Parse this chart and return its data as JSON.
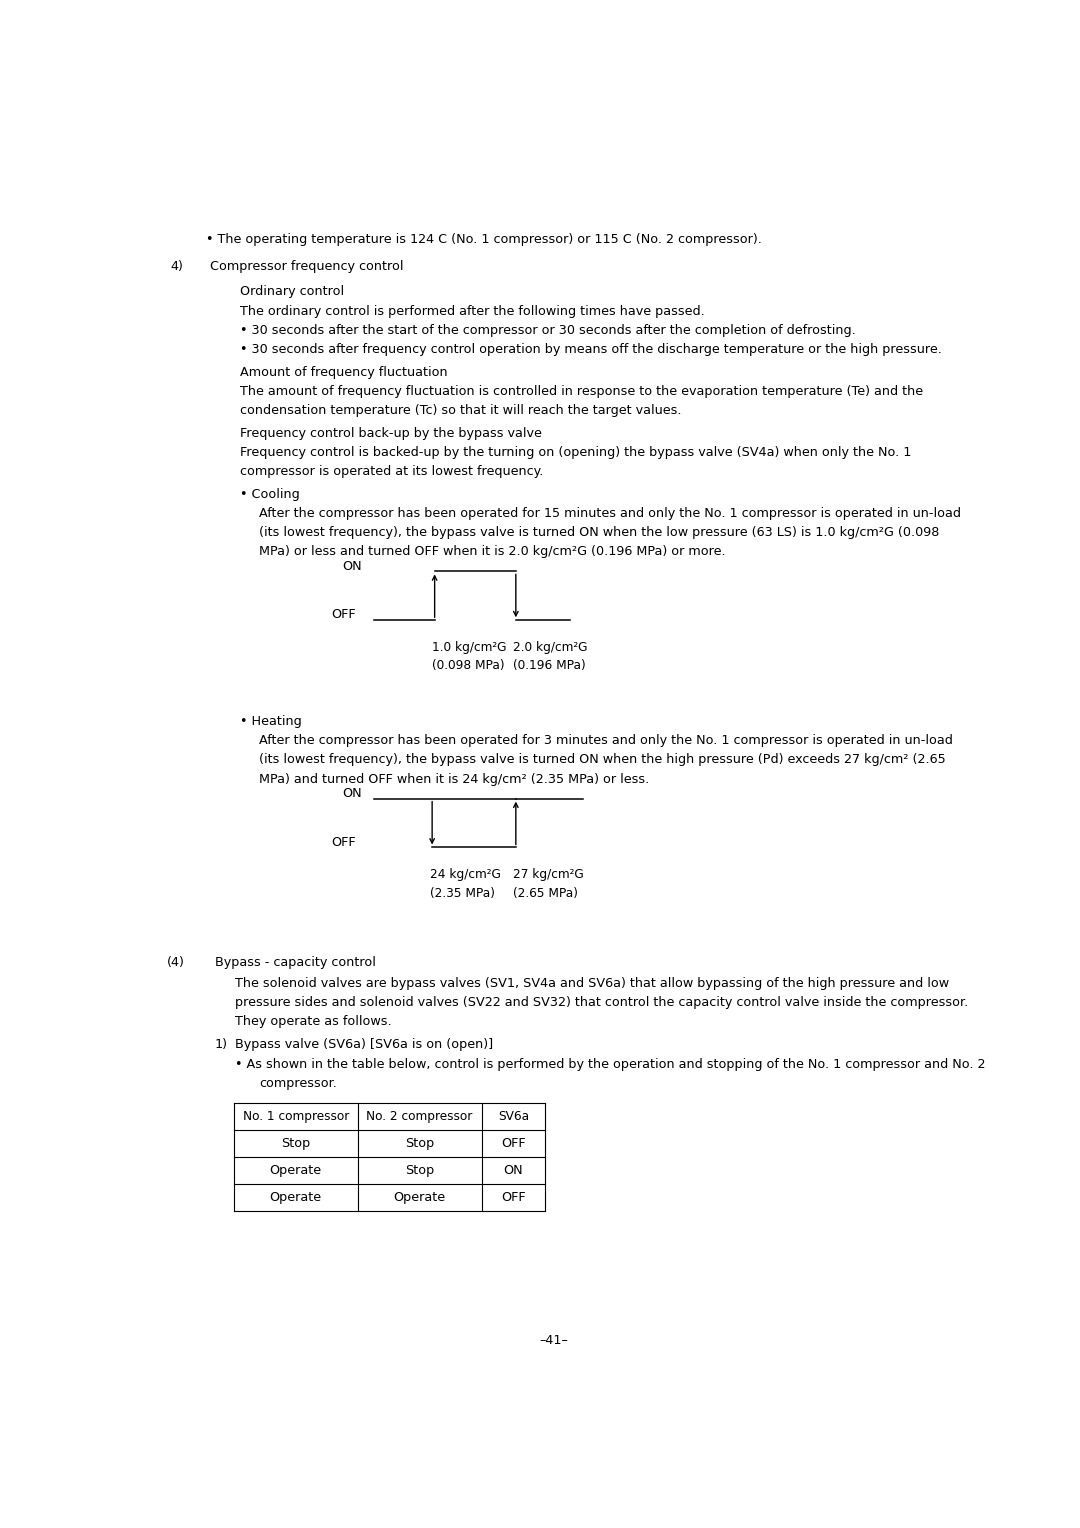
{
  "bg_color": "#ffffff",
  "text_color": "#000000",
  "font_size": 9.2,
  "page_width": 10.8,
  "page_height": 15.28,
  "bullet_line": "• The operating temperature is 124 C (No. 1 compressor) or 115 C (No. 2 compressor).",
  "section4_label": "4)",
  "section4_title": "Compressor frequency control",
  "ordinary_control": "Ordinary control",
  "ordinary_text": "The ordinary control is performed after the following times have passed.",
  "bullet1": "• 30 seconds after the start of the compressor or 30 seconds after the completion of defrosting.",
  "bullet2": "• 30 seconds after frequency control operation by means off the discharge temperature or the high pressure.",
  "amount_title": "Amount of frequency fluctuation",
  "amount_text1": "The amount of frequency fluctuation is controlled in response to the evaporation temperature (Te) and the",
  "amount_text2": "condensation temperature (Tc) so that it will reach the target values.",
  "freq_backup_title": "Frequency control back-up by the bypass valve",
  "freq_backup_text1": "Frequency control is backed-up by the turning on (opening) the bypass valve (SV4a) when only the No. 1",
  "freq_backup_text2": "compressor is operated at its lowest frequency.",
  "cooling_bullet": "• Cooling",
  "cooling_text1": "After the compressor has been operated for 15 minutes and only the No. 1 compressor is operated in un-load",
  "cooling_text2": "(its lowest frequency), the bypass valve is turned ON when the low pressure (63 LS) is 1.0 kg/cm²G (0.098",
  "cooling_text3": "MPa) or less and turned OFF when it is 2.0 kg/cm²G (0.196 MPa) or more.",
  "cooling_x1_label": "1.0 kg/cm²G",
  "cooling_x2_label": "2.0 kg/cm²G",
  "cooling_x1_sub": "(0.098 MPa)",
  "cooling_x2_sub": "(0.196 MPa)",
  "heating_bullet": "• Heating",
  "heating_text1": "After the compressor has been operated for 3 minutes and only the No. 1 compressor is operated in un-load",
  "heating_text2": "(its lowest frequency), the bypass valve is turned ON when the high pressure (Pd) exceeds 27 kg/cm² (2.65",
  "heating_text3": "MPa) and turned OFF when it is 24 kg/cm² (2.35 MPa) or less.",
  "heating_x1_label": "24 kg/cm²G",
  "heating_x2_label": "27 kg/cm²G",
  "heating_x1_sub": "(2.35 MPa)",
  "heating_x2_sub": "(2.65 MPa)",
  "section4p_label": "(4)",
  "section4p_title": "Bypass - capacity control",
  "bypass_text1": "The solenoid valves are bypass valves (SV1, SV4a and SV6a) that allow bypassing of the high pressure and low",
  "bypass_text2": "pressure sides and solenoid valves (SV22 and SV32) that control the capacity control valve inside the compressor.",
  "bypass_text3": "They operate as follows.",
  "bypass_sub1_label": "1)",
  "bypass_sub1_title": "Bypass valve (SV6a) [SV6a is on (open)]",
  "bypass_bullet1": "• As shown in the table below, control is performed by the operation and stopping of the No. 1 compressor and No. 2",
  "bypass_bullet2": "compressor.",
  "table_headers": [
    "No. 1 compressor",
    "No. 2 compressor",
    "SV6a"
  ],
  "table_rows": [
    [
      "Stop",
      "Stop",
      "OFF"
    ],
    [
      "Operate",
      "Stop",
      "ON"
    ],
    [
      "Operate",
      "Operate",
      "OFF"
    ]
  ],
  "page_number": "–41–"
}
